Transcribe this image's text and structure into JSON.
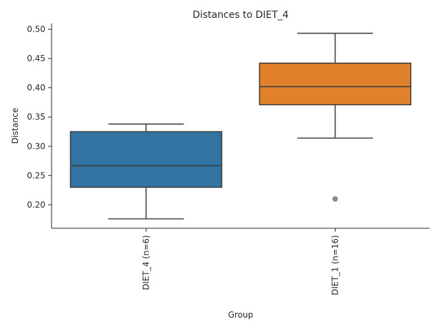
{
  "chart_data": {
    "type": "box",
    "title": "Distances to DIET_4",
    "xlabel": "Group",
    "ylabel": "Distance",
    "ylim": [
      0.16,
      0.51
    ],
    "yticks": [
      0.2,
      0.25,
      0.3,
      0.35,
      0.4,
      0.45,
      0.5
    ],
    "ytick_labels": [
      "0.20",
      "0.25",
      "0.30",
      "0.35",
      "0.40",
      "0.45",
      "0.50"
    ],
    "grid": false,
    "categories": [
      "DIET_4 (n=6)",
      "DIET_1 (n=16)"
    ],
    "boxes": [
      {
        "category": "DIET_4 (n=6)",
        "whisker_low": 0.176,
        "q1": 0.23,
        "median": 0.267,
        "q3": 0.325,
        "whisker_high": 0.338,
        "outliers": [],
        "color": "#3274a1"
      },
      {
        "category": "DIET_1 (n=16)",
        "whisker_low": 0.314,
        "q1": 0.371,
        "median": 0.402,
        "q3": 0.442,
        "whisker_high": 0.493,
        "outliers": [
          0.21
        ],
        "color": "#e1812c"
      }
    ]
  }
}
